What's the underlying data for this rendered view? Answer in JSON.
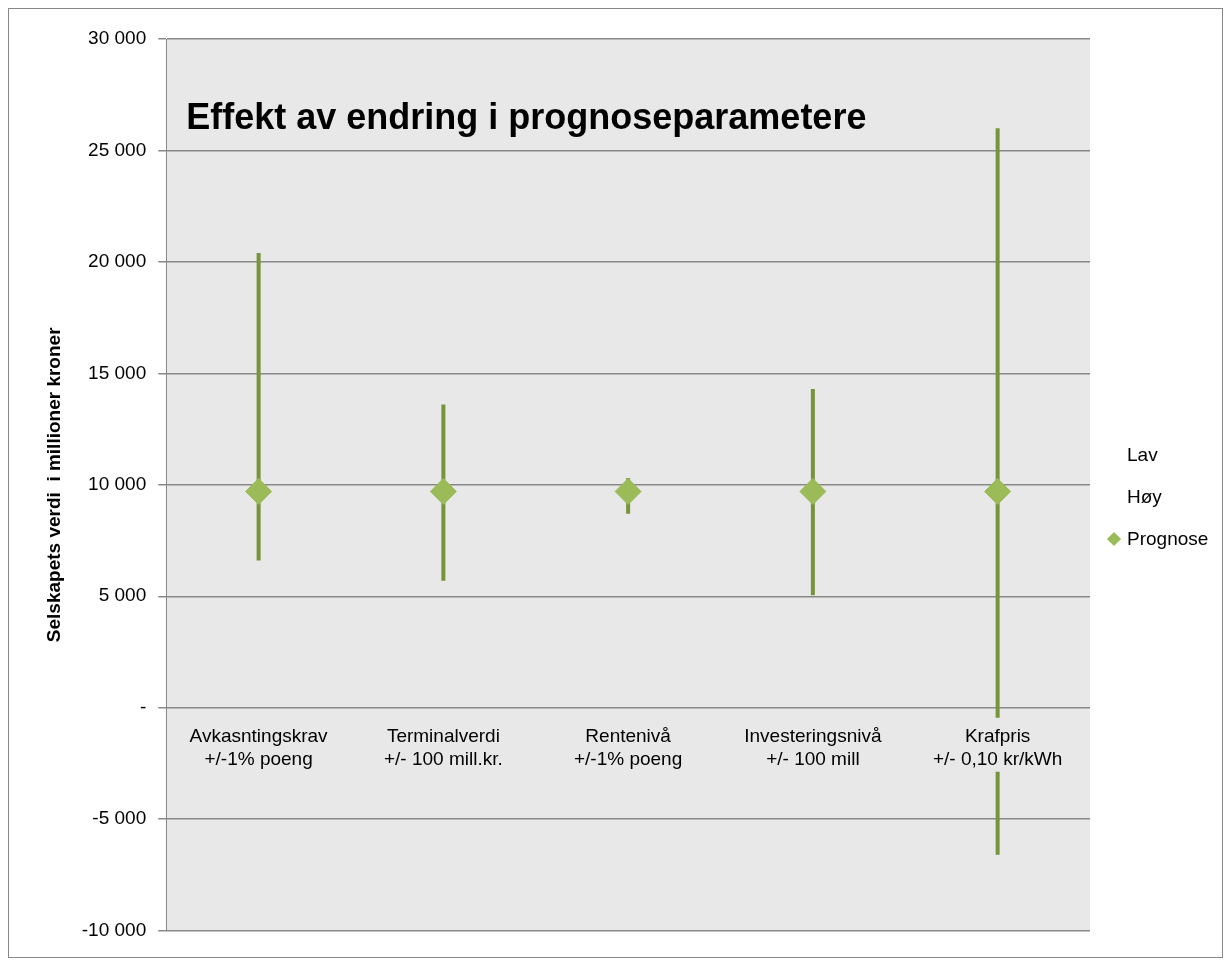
{
  "chart_data": {
    "type": "scatter",
    "title": "Effekt av endring i prognoseparametere",
    "ylabel": "Selskapets verdi  i millioner kroner",
    "categories": [
      "Avkasntingskrav\n+/-1% poeng",
      "Terminalverdi\n+/- 100 mill.kr.",
      "Rentenivå\n+/-1% poeng",
      "Investeringsnivå\n+/- 100 mill",
      "Krafpris\n+/- 0,10 kr/kWh"
    ],
    "series": [
      {
        "name": "Prognose",
        "marker": "diamond",
        "color": "#9bbb59",
        "values": [
          9700,
          9700,
          9700,
          9700,
          9700
        ],
        "errors": [
          [
            6600,
            20400
          ],
          [
            5700,
            13600
          ],
          [
            8700,
            10300
          ],
          [
            5050,
            14300
          ],
          [
            -6600,
            26000
          ]
        ]
      }
    ],
    "annotations": [
      "Lav",
      "Høy"
    ],
    "ylim": [
      -10000,
      30000
    ],
    "yticks": [
      {
        "value": -10000,
        "label": "-10 000"
      },
      {
        "value": -5000,
        "label": "-5 000"
      },
      {
        "value": 0,
        "label": "-"
      },
      {
        "value": 5000,
        "label": "5 000"
      },
      {
        "value": 10000,
        "label": "10 000"
      },
      {
        "value": 15000,
        "label": "15 000"
      },
      {
        "value": 20000,
        "label": "20 000"
      },
      {
        "value": 25000,
        "label": "25 000"
      },
      {
        "value": 30000,
        "label": "30 000"
      }
    ],
    "grid": "y",
    "legend": "right"
  }
}
